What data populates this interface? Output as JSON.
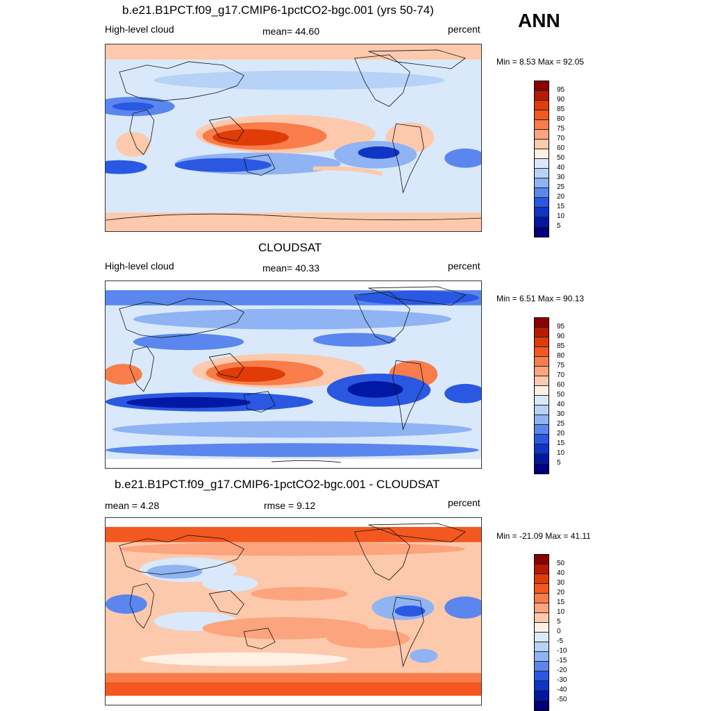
{
  "season": "ANN",
  "panels": [
    {
      "title": "b.e21.B1PCT.f09_g17.CMIP6-1pctCO2-bgc.001 (yrs 50-74)",
      "left_label": "High-level cloud",
      "center_label": "mean=  44.60",
      "right_label": "percent",
      "minmax": "Min =   8.53 Max =  92.05",
      "colorbar_labels": [
        "95",
        "90",
        "85",
        "80",
        "75",
        "70",
        "60",
        "50",
        "40",
        "30",
        "25",
        "20",
        "15",
        "10",
        "5"
      ]
    },
    {
      "title": "CLOUDSAT",
      "left_label": "High-level cloud",
      "center_label": "mean=  40.33",
      "right_label": "percent",
      "minmax": "Min =   6.51 Max =  90.13",
      "colorbar_labels": [
        "95",
        "90",
        "85",
        "80",
        "75",
        "70",
        "60",
        "50",
        "40",
        "30",
        "25",
        "20",
        "15",
        "10",
        "5"
      ]
    },
    {
      "title": "b.e21.B1PCT.f09_g17.CMIP6-1pctCO2-bgc.001 - CLOUDSAT",
      "left_label": "mean =   4.28",
      "center_label": "rmse =   9.12",
      "right_label": "percent",
      "minmax": "Min = -21.09 Max =  41.11",
      "colorbar_labels": [
        "50",
        "40",
        "30",
        "20",
        "15",
        "10",
        "5",
        "0",
        "-5",
        "-10",
        "-15",
        "-20",
        "-30",
        "-40",
        "-50"
      ]
    }
  ],
  "colors": {
    "scale": [
      "#8b0000",
      "#b81a00",
      "#e03c08",
      "#f2581f",
      "#f87d4a",
      "#fca47d",
      "#fdc9ac",
      "#fff0e4",
      "#d9e9fb",
      "#b6d2f7",
      "#8fb3f3",
      "#5a86ee",
      "#2a58e2",
      "#0f35c6",
      "#0018a3",
      "#00007a"
    ]
  }
}
